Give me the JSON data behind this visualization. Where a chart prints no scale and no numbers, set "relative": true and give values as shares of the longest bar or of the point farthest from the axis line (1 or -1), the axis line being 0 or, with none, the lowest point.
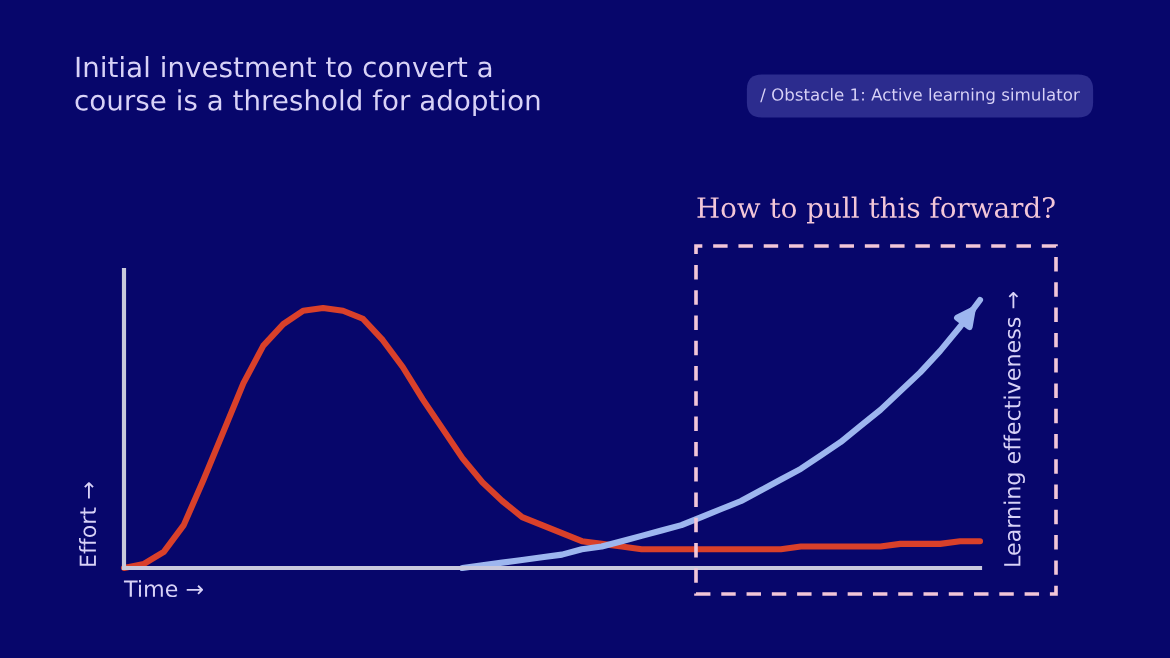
{
  "chart_data": {
    "type": "line",
    "relative": true,
    "title": "Initial investment to convert a\ncourse is a threshold for adoption",
    "xlabel": "Time →",
    "ylabel": "Effort →",
    "y2label": "Learning effectiveness →",
    "annotations": [
      "/ Obstacle 1: Active learning simulator",
      "How to pull this forward?"
    ],
    "categories": [
      null,
      null,
      null,
      null,
      null,
      null,
      null,
      null,
      null,
      null,
      null,
      null,
      null,
      null,
      null,
      null,
      null,
      null,
      null,
      null,
      null,
      null,
      null,
      null,
      null,
      null,
      null,
      null,
      null,
      null,
      null,
      null,
      null,
      null,
      null,
      null,
      null,
      null,
      null,
      null,
      null,
      null,
      null,
      null
    ],
    "legend": false,
    "grid": false,
    "marker": "none",
    "line_style": "solid",
    "series": [
      {
        "color": "#d9402a",
        "values": [
          0,
          0.015,
          0.06,
          0.16,
          0.33,
          0.51,
          0.69,
          0.83,
          0.91,
          0.96,
          0.97,
          0.96,
          0.93,
          0.85,
          0.75,
          0.63,
          0.52,
          0.41,
          0.32,
          0.25,
          0.19,
          0.16,
          0.13,
          0.1,
          0.09,
          0.08,
          0.07,
          0.07,
          0.07,
          0.07,
          0.07,
          0.07,
          0.07,
          0.07,
          0.08,
          0.08,
          0.08,
          0.08,
          0.08,
          0.09,
          0.09,
          0.09,
          0.1,
          0.1
        ]
      },
      {
        "color": "#9db6ef",
        "values": [
          null,
          null,
          null,
          null,
          null,
          null,
          null,
          null,
          null,
          null,
          null,
          null,
          null,
          null,
          null,
          null,
          null,
          0,
          0.01,
          0.02,
          0.03,
          0.04,
          0.05,
          0.07,
          0.08,
          0.1,
          0.12,
          0.14,
          0.16,
          0.19,
          0.22,
          0.25,
          0.29,
          0.33,
          0.37,
          0.42,
          0.47,
          0.53,
          0.59,
          0.66,
          0.73,
          0.81,
          0.9,
          1.0
        ]
      }
    ]
  }
}
